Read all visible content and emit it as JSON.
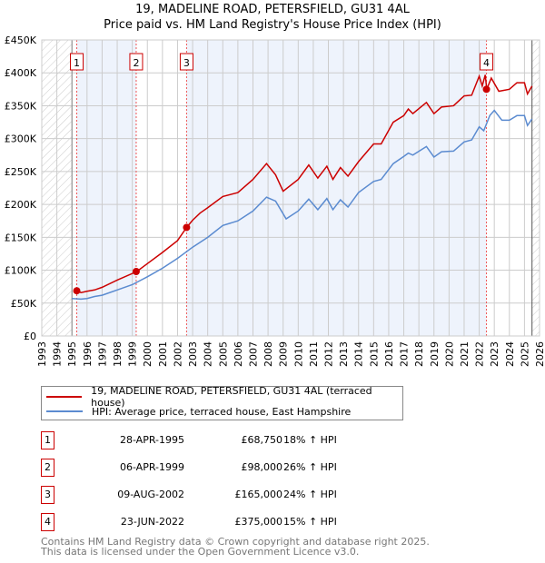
{
  "chart_data": {
    "type": "line",
    "title": "19, MADELINE ROAD, PETERSFIELD, GU31 4AL",
    "subtitle": "Price paid vs. HM Land Registry's House Price Index (HPI)",
    "xlim": [
      1993,
      2026
    ],
    "ylim": [
      0,
      450000
    ],
    "x_ticks": [
      "1993",
      "1994",
      "1995",
      "1996",
      "1997",
      "1998",
      "1999",
      "2000",
      "2001",
      "2002",
      "2003",
      "2004",
      "2005",
      "2006",
      "2007",
      "2008",
      "2009",
      "2010",
      "2011",
      "2012",
      "2013",
      "2014",
      "2015",
      "2016",
      "2017",
      "2018",
      "2019",
      "2020",
      "2021",
      "2022",
      "2023",
      "2024",
      "2025",
      "2026"
    ],
    "y_ticks": [
      {
        "v": 0,
        "label": "£0"
      },
      {
        "v": 50000,
        "label": "£50K"
      },
      {
        "v": 100000,
        "label": "£100K"
      },
      {
        "v": 150000,
        "label": "£150K"
      },
      {
        "v": 200000,
        "label": "£200K"
      },
      {
        "v": 250000,
        "label": "£250K"
      },
      {
        "v": 300000,
        "label": "£300K"
      },
      {
        "v": 350000,
        "label": "£350K"
      },
      {
        "v": 400000,
        "label": "£400K"
      },
      {
        "v": 450000,
        "label": "£450K"
      }
    ],
    "grid": true,
    "series": [
      {
        "name": "19, MADELINE ROAD, PETERSFIELD, GU31 4AL (terraced house)",
        "color": "#cc0000",
        "x": [
          1995.3,
          1995.6,
          1996,
          1996.5,
          1997,
          1998,
          1999.3,
          2000,
          2001,
          2002,
          2002.6,
          2003,
          2003.5,
          2004,
          2005,
          2006,
          2007,
          2007.9,
          2008.5,
          2009,
          2010,
          2010.7,
          2011.3,
          2011.9,
          2012.3,
          2012.8,
          2013.3,
          2014,
          2015,
          2015.5,
          2016.3,
          2017,
          2017.3,
          2017.6,
          2018.5,
          2019,
          2019.5,
          2020.3,
          2021,
          2021.5,
          2022,
          2022.2,
          2022.4,
          2022.5,
          2022.8,
          2023.3,
          2024,
          2024.5,
          2025,
          2025.2,
          2025.5
        ],
        "y": [
          68750,
          66000,
          68000,
          70000,
          74000,
          85000,
          98000,
          110000,
          127000,
          145000,
          165000,
          176000,
          187000,
          195000,
          212000,
          218000,
          238000,
          262000,
          245000,
          220000,
          238000,
          260000,
          240000,
          258000,
          238000,
          256000,
          243000,
          265000,
          292000,
          292000,
          325000,
          335000,
          345000,
          338000,
          355000,
          338000,
          348000,
          350000,
          365000,
          366000,
          395000,
          380000,
          397000,
          375000,
          392000,
          372000,
          375000,
          385000,
          385000,
          368000,
          380000
        ]
      },
      {
        "name": "HPI: Average price, terraced house, East Hampshire",
        "color": "#5b8bd0",
        "x": [
          1995,
          1995.6,
          1996,
          1996.5,
          1997,
          1998,
          1999,
          2000,
          2001,
          2002,
          2003,
          2004,
          2005,
          2006,
          2007,
          2007.9,
          2008.5,
          2009.2,
          2010,
          2010.7,
          2011.3,
          2011.9,
          2012.3,
          2012.8,
          2013.3,
          2014,
          2015,
          2015.5,
          2016.3,
          2017,
          2017.3,
          2017.6,
          2018.5,
          2019,
          2019.5,
          2020.3,
          2021,
          2021.5,
          2022,
          2022.3,
          2022.7,
          2023,
          2023.5,
          2024,
          2024.5,
          2025,
          2025.2,
          2025.5
        ],
        "y": [
          57000,
          56000,
          57000,
          60000,
          62000,
          70000,
          78000,
          90000,
          103000,
          118000,
          135000,
          150000,
          168000,
          175000,
          190000,
          211000,
          205000,
          178000,
          190000,
          208000,
          192000,
          209000,
          192000,
          207000,
          196000,
          218000,
          235000,
          238000,
          262000,
          273000,
          278000,
          275000,
          288000,
          272000,
          280000,
          281000,
          295000,
          298000,
          318000,
          312000,
          335000,
          343000,
          328000,
          328000,
          335000,
          335000,
          320000,
          330000
        ]
      }
    ],
    "transactions": [
      {
        "n": "1",
        "x": 1995.32,
        "date": "28-APR-1995",
        "price": "£68,750",
        "value": 68750,
        "hpi": "18% ↑ HPI"
      },
      {
        "n": "2",
        "x": 1999.26,
        "date": "06-APR-1999",
        "price": "£98,000",
        "value": 98000,
        "hpi": "26% ↑ HPI"
      },
      {
        "n": "3",
        "x": 2002.6,
        "date": "09-AUG-2002",
        "price": "£165,000",
        "value": 165000,
        "hpi": "24% ↑ HPI"
      },
      {
        "n": "4",
        "x": 2022.48,
        "date": "23-JUN-2022",
        "price": "£375,000",
        "value": 375000,
        "hpi": "15% ↑ HPI"
      }
    ],
    "legend_position": "below"
  },
  "footer": [
    "Contains HM Land Registry data © Crown copyright and database right 2025.",
    "This data is licensed under the Open Government Licence v3.0."
  ]
}
